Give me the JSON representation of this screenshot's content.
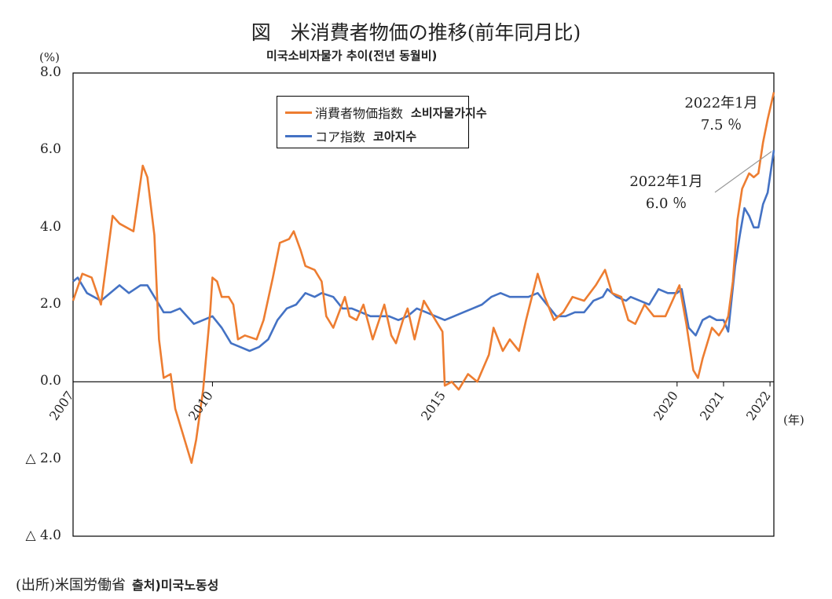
{
  "title": "図　米消費者物価の推移(前年同月比)",
  "subtitle_ko": "미국소비자물가 추이(전년 동월비)",
  "source": "(出所)米国労働省",
  "source_ko": "출처)미국노동성",
  "colors": {
    "cpi": "#ED7D31",
    "core": "#4472C4"
  },
  "annotations": {
    "cpi": {
      "line1": "2022年1月",
      "line2": "7.5 ％"
    },
    "core": {
      "line1": "2022年1月",
      "line2": "6.0 ％"
    }
  },
  "chart_data": {
    "type": "line",
    "ylabel": "(%)",
    "xlabel": "(年)",
    "ylim": [
      -4,
      8
    ],
    "yticks": [
      {
        "value": 8,
        "label": "8.0"
      },
      {
        "value": 6,
        "label": "6.0"
      },
      {
        "value": 4,
        "label": "4.0"
      },
      {
        "value": 2,
        "label": "2.0"
      },
      {
        "value": 0,
        "label": "0.0"
      },
      {
        "value": -2,
        "label": "△ 2.0"
      },
      {
        "value": -4,
        "label": "△ 4.0"
      }
    ],
    "xlim": [
      2007,
      2022.083
    ],
    "xticks": [
      {
        "value": 2007,
        "label": "2007"
      },
      {
        "value": 2010,
        "label": "2010"
      },
      {
        "value": 2015,
        "label": "2015"
      },
      {
        "value": 2020,
        "label": "2020"
      },
      {
        "value": 2021,
        "label": "2021"
      },
      {
        "value": 2022,
        "label": "2022"
      }
    ],
    "series": [
      {
        "name": "消費者物価指数",
        "name_ko": "소비자물가지수",
        "points": [
          [
            2007.0,
            2.1
          ],
          [
            2007.2,
            2.8
          ],
          [
            2007.4,
            2.7
          ],
          [
            2007.6,
            2.0
          ],
          [
            2007.85,
            4.3
          ],
          [
            2008.0,
            4.1
          ],
          [
            2008.3,
            3.9
          ],
          [
            2008.5,
            5.6
          ],
          [
            2008.6,
            5.3
          ],
          [
            2008.75,
            3.8
          ],
          [
            2008.85,
            1.1
          ],
          [
            2008.95,
            0.1
          ],
          [
            2009.1,
            0.2
          ],
          [
            2009.2,
            -0.7
          ],
          [
            2009.35,
            -1.3
          ],
          [
            2009.55,
            -2.1
          ],
          [
            2009.65,
            -1.5
          ],
          [
            2009.8,
            -0.2
          ],
          [
            2009.95,
            1.8
          ],
          [
            2010.0,
            2.7
          ],
          [
            2010.1,
            2.6
          ],
          [
            2010.2,
            2.2
          ],
          [
            2010.35,
            2.2
          ],
          [
            2010.45,
            2.0
          ],
          [
            2010.55,
            1.1
          ],
          [
            2010.7,
            1.2
          ],
          [
            2010.95,
            1.1
          ],
          [
            2011.1,
            1.6
          ],
          [
            2011.3,
            2.7
          ],
          [
            2011.45,
            3.6
          ],
          [
            2011.65,
            3.7
          ],
          [
            2011.75,
            3.9
          ],
          [
            2011.9,
            3.4
          ],
          [
            2012.0,
            3.0
          ],
          [
            2012.2,
            2.9
          ],
          [
            2012.35,
            2.6
          ],
          [
            2012.45,
            1.7
          ],
          [
            2012.6,
            1.4
          ],
          [
            2012.85,
            2.2
          ],
          [
            2012.95,
            1.7
          ],
          [
            2013.1,
            1.6
          ],
          [
            2013.25,
            2.0
          ],
          [
            2013.45,
            1.1
          ],
          [
            2013.7,
            2.0
          ],
          [
            2013.85,
            1.2
          ],
          [
            2013.95,
            1.0
          ],
          [
            2014.1,
            1.6
          ],
          [
            2014.2,
            1.9
          ],
          [
            2014.35,
            1.1
          ],
          [
            2014.55,
            2.1
          ],
          [
            2014.75,
            1.7
          ],
          [
            2014.95,
            1.3
          ],
          [
            2015.0,
            -0.1
          ],
          [
            2015.15,
            0.0
          ],
          [
            2015.3,
            -0.2
          ],
          [
            2015.5,
            0.2
          ],
          [
            2015.7,
            0.0
          ],
          [
            2015.95,
            0.7
          ],
          [
            2016.05,
            1.4
          ],
          [
            2016.25,
            0.8
          ],
          [
            2016.4,
            1.1
          ],
          [
            2016.6,
            0.8
          ],
          [
            2016.75,
            1.6
          ],
          [
            2017.0,
            2.8
          ],
          [
            2017.15,
            2.2
          ],
          [
            2017.35,
            1.6
          ],
          [
            2017.55,
            1.8
          ],
          [
            2017.75,
            2.2
          ],
          [
            2018.0,
            2.1
          ],
          [
            2018.25,
            2.5
          ],
          [
            2018.45,
            2.9
          ],
          [
            2018.6,
            2.3
          ],
          [
            2018.8,
            2.2
          ],
          [
            2018.95,
            1.6
          ],
          [
            2019.1,
            1.5
          ],
          [
            2019.3,
            2.0
          ],
          [
            2019.5,
            1.7
          ],
          [
            2019.75,
            1.7
          ],
          [
            2019.9,
            2.1
          ],
          [
            2020.05,
            2.5
          ],
          [
            2020.2,
            1.5
          ],
          [
            2020.35,
            0.3
          ],
          [
            2020.45,
            0.1
          ],
          [
            2020.55,
            0.6
          ],
          [
            2020.75,
            1.4
          ],
          [
            2020.9,
            1.2
          ],
          [
            2021.0,
            1.4
          ],
          [
            2021.1,
            1.7
          ],
          [
            2021.2,
            2.6
          ],
          [
            2021.3,
            4.2
          ],
          [
            2021.4,
            5.0
          ],
          [
            2021.55,
            5.4
          ],
          [
            2021.65,
            5.3
          ],
          [
            2021.75,
            5.4
          ],
          [
            2021.85,
            6.2
          ],
          [
            2021.95,
            6.8
          ],
          [
            2022.083,
            7.5
          ]
        ]
      },
      {
        "name": "コア指数",
        "name_ko": "코아지수",
        "points": [
          [
            2007.0,
            2.6
          ],
          [
            2007.1,
            2.7
          ],
          [
            2007.3,
            2.3
          ],
          [
            2007.6,
            2.1
          ],
          [
            2007.8,
            2.3
          ],
          [
            2008.0,
            2.5
          ],
          [
            2008.2,
            2.3
          ],
          [
            2008.45,
            2.5
          ],
          [
            2008.6,
            2.5
          ],
          [
            2008.8,
            2.1
          ],
          [
            2008.95,
            1.8
          ],
          [
            2009.1,
            1.8
          ],
          [
            2009.3,
            1.9
          ],
          [
            2009.45,
            1.7
          ],
          [
            2009.6,
            1.5
          ],
          [
            2009.8,
            1.6
          ],
          [
            2010.0,
            1.7
          ],
          [
            2010.2,
            1.4
          ],
          [
            2010.4,
            1.0
          ],
          [
            2010.6,
            0.9
          ],
          [
            2010.8,
            0.8
          ],
          [
            2011.0,
            0.9
          ],
          [
            2011.2,
            1.1
          ],
          [
            2011.4,
            1.6
          ],
          [
            2011.6,
            1.9
          ],
          [
            2011.8,
            2.0
          ],
          [
            2012.0,
            2.3
          ],
          [
            2012.2,
            2.2
          ],
          [
            2012.35,
            2.3
          ],
          [
            2012.6,
            2.2
          ],
          [
            2012.8,
            1.9
          ],
          [
            2013.0,
            1.9
          ],
          [
            2013.2,
            1.8
          ],
          [
            2013.4,
            1.7
          ],
          [
            2013.6,
            1.7
          ],
          [
            2013.8,
            1.7
          ],
          [
            2014.0,
            1.6
          ],
          [
            2014.2,
            1.7
          ],
          [
            2014.4,
            1.9
          ],
          [
            2014.6,
            1.8
          ],
          [
            2014.8,
            1.7
          ],
          [
            2015.0,
            1.6
          ],
          [
            2015.2,
            1.7
          ],
          [
            2015.4,
            1.8
          ],
          [
            2015.6,
            1.9
          ],
          [
            2015.8,
            2.0
          ],
          [
            2016.0,
            2.2
          ],
          [
            2016.2,
            2.3
          ],
          [
            2016.4,
            2.2
          ],
          [
            2016.6,
            2.2
          ],
          [
            2016.8,
            2.2
          ],
          [
            2017.0,
            2.3
          ],
          [
            2017.2,
            2.0
          ],
          [
            2017.4,
            1.7
          ],
          [
            2017.6,
            1.7
          ],
          [
            2017.8,
            1.8
          ],
          [
            2018.0,
            1.8
          ],
          [
            2018.2,
            2.1
          ],
          [
            2018.4,
            2.2
          ],
          [
            2018.5,
            2.4
          ],
          [
            2018.7,
            2.2
          ],
          [
            2018.9,
            2.1
          ],
          [
            2019.0,
            2.2
          ],
          [
            2019.2,
            2.1
          ],
          [
            2019.4,
            2.0
          ],
          [
            2019.6,
            2.4
          ],
          [
            2019.8,
            2.3
          ],
          [
            2020.0,
            2.3
          ],
          [
            2020.1,
            2.4
          ],
          [
            2020.25,
            1.4
          ],
          [
            2020.4,
            1.2
          ],
          [
            2020.55,
            1.6
          ],
          [
            2020.7,
            1.7
          ],
          [
            2020.85,
            1.6
          ],
          [
            2021.0,
            1.6
          ],
          [
            2021.1,
            1.3
          ],
          [
            2021.25,
            3.0
          ],
          [
            2021.35,
            3.8
          ],
          [
            2021.45,
            4.5
          ],
          [
            2021.55,
            4.3
          ],
          [
            2021.65,
            4.0
          ],
          [
            2021.75,
            4.0
          ],
          [
            2021.85,
            4.6
          ],
          [
            2021.95,
            4.9
          ],
          [
            2022.083,
            6.0
          ]
        ]
      }
    ]
  }
}
